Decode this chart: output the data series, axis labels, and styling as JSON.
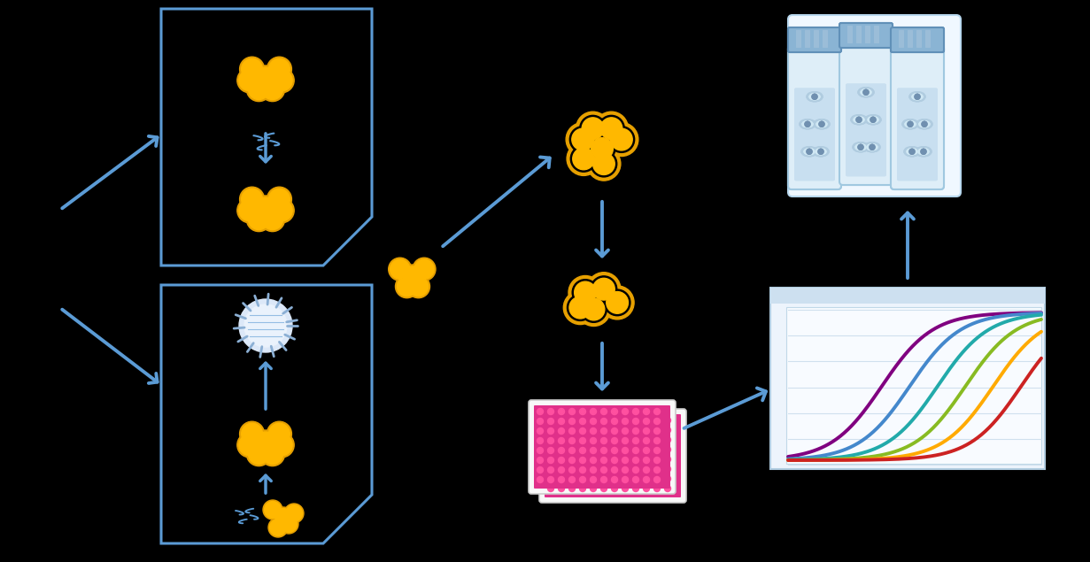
{
  "bg_color": "#000000",
  "arrow_color": "#5b9bd5",
  "box_color": "#5b9bd5",
  "cell_gold": "#FFB800",
  "cell_gold_dark": "#E6A000",
  "cell_ring_inner": "#000000",
  "virus_body": "#dce8f8",
  "virus_spike": "#8bafd4",
  "graph_bg": "#f0f6ff",
  "graph_border": "#c8ddf0",
  "tube_cap": "#8ab4d4",
  "tube_body": "#daeaf8",
  "tube_cell_fill": "#a8c8e8",
  "tube_cell_dark": "#5a7a9a",
  "plate_bg": "#f0f0f0",
  "plate_pink": "#e0208a",
  "plate_well": "#ff60b0",
  "figsize": [
    12.31,
    6.35
  ],
  "dpi": 100,
  "curve_colors": [
    "#800080",
    "#4488cc",
    "#22aaaa",
    "#88bb22",
    "#ffaa00",
    "#cc2222"
  ]
}
